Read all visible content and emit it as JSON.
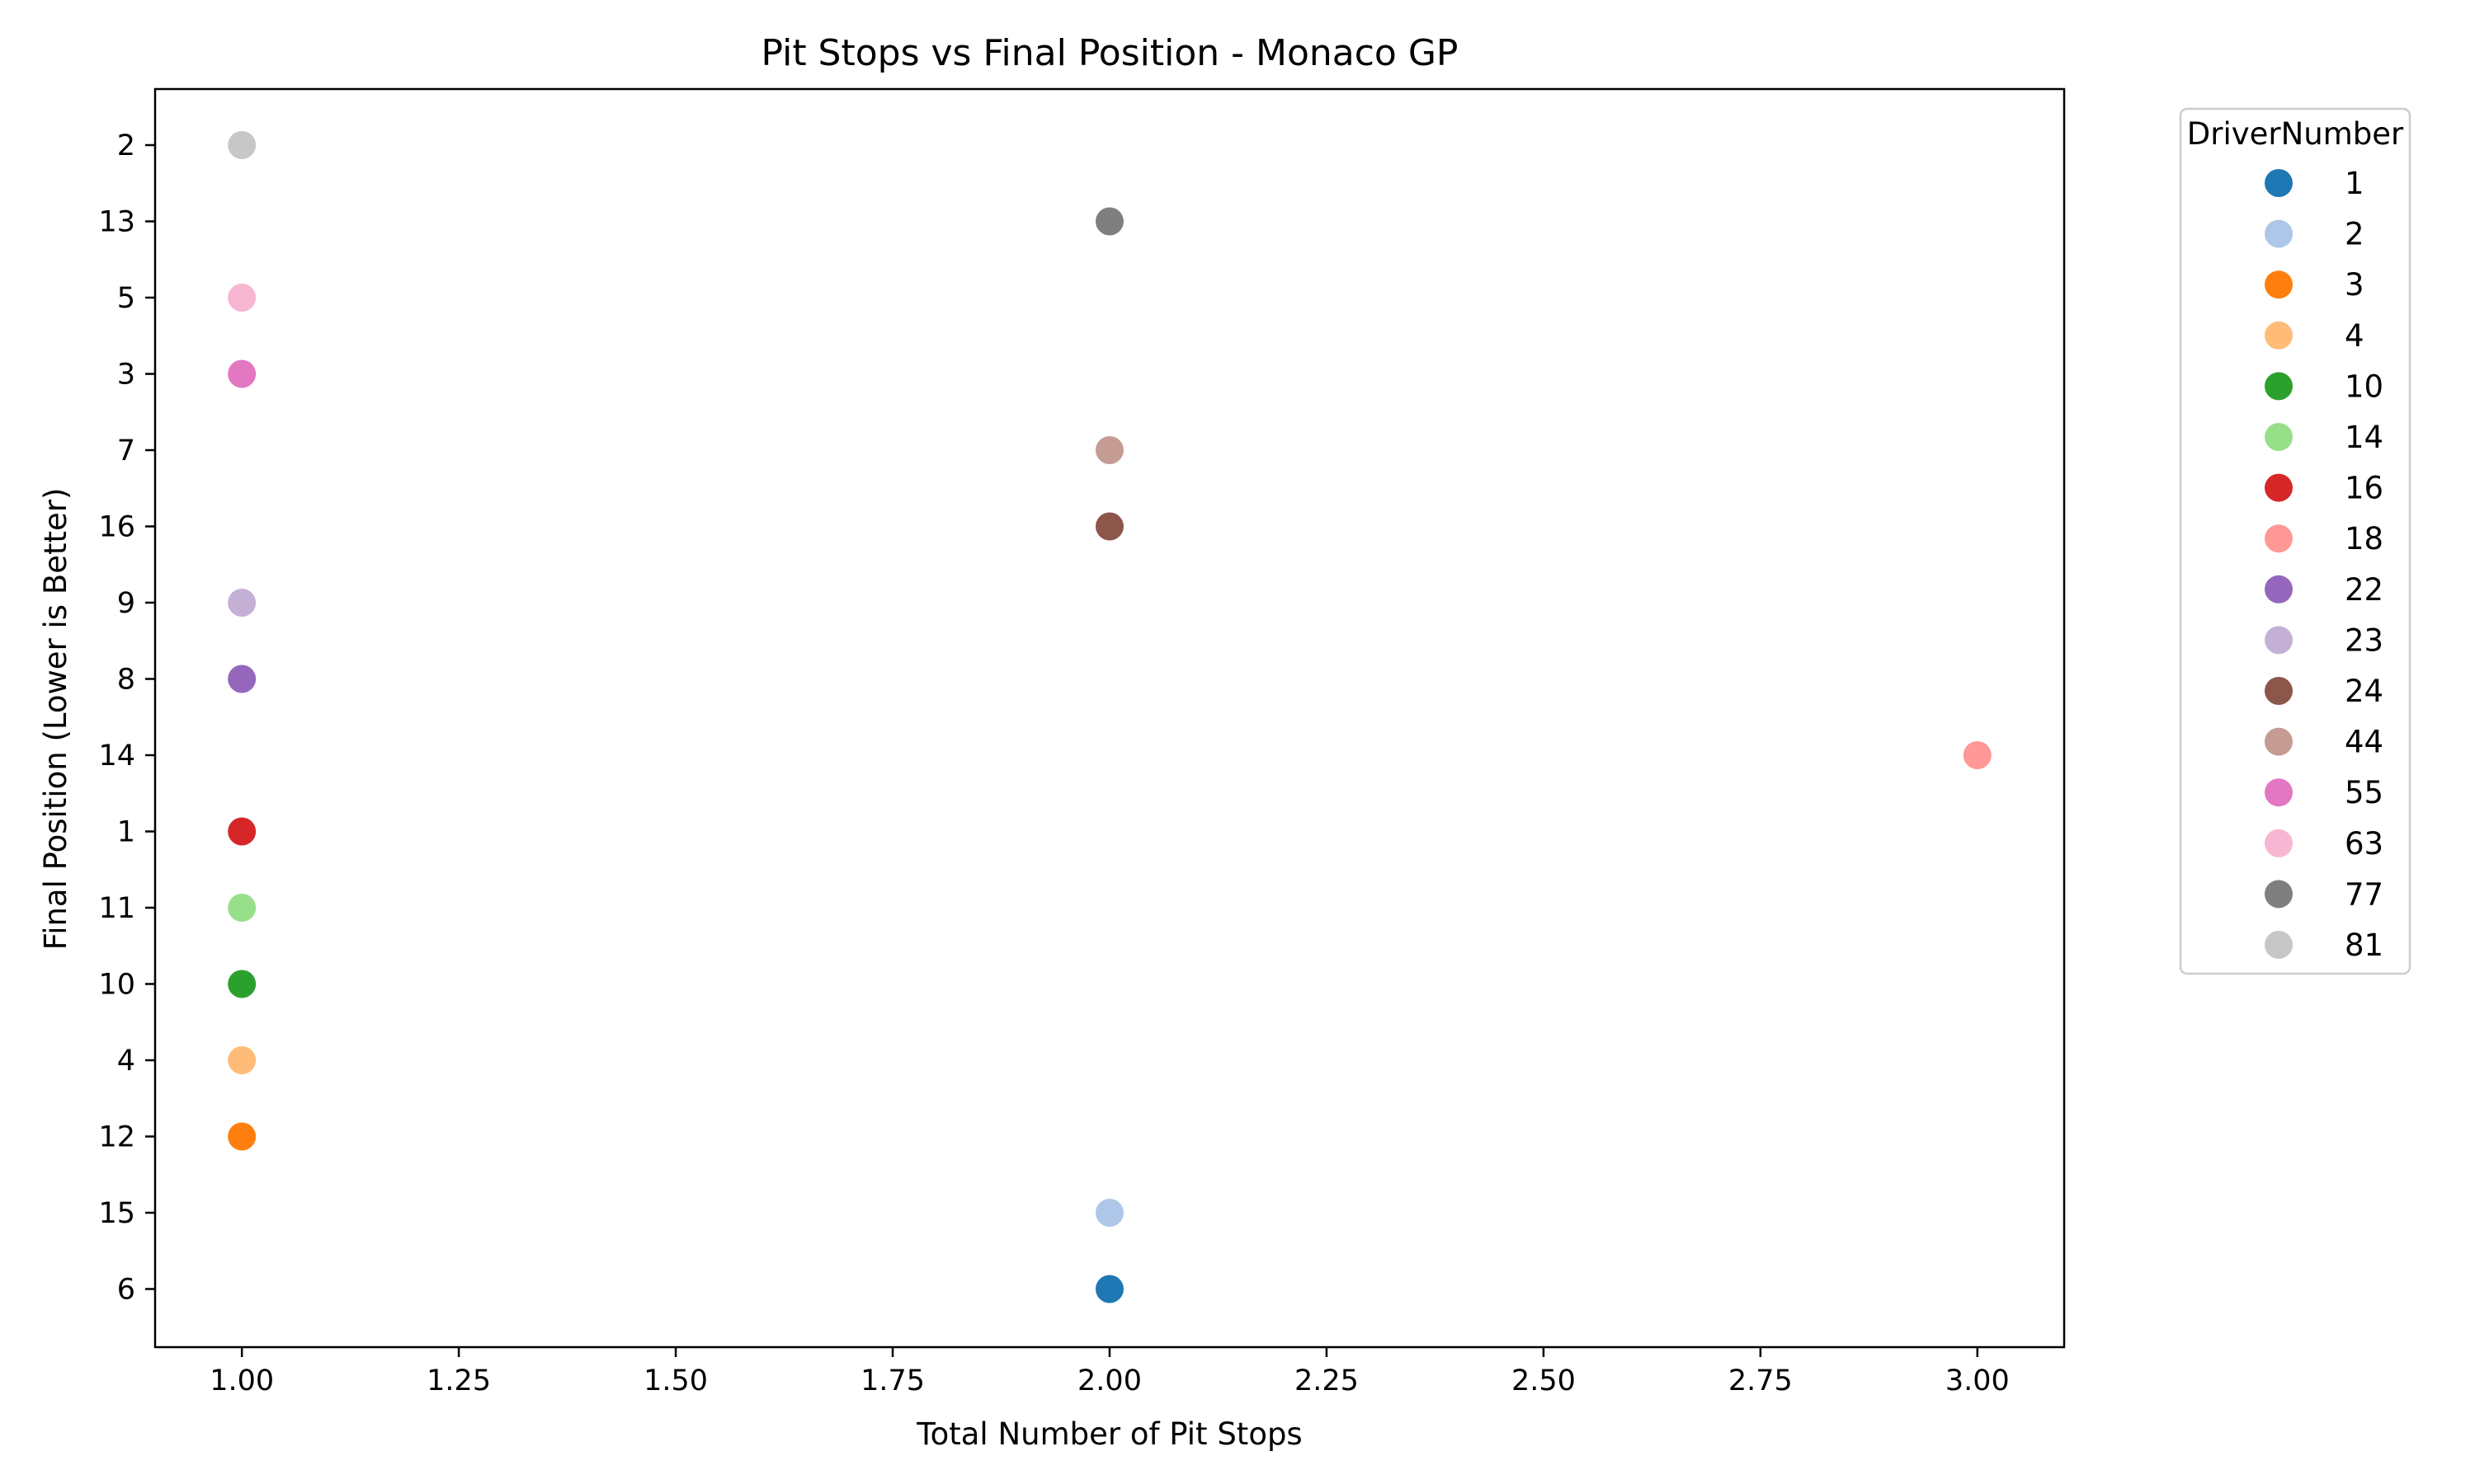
{
  "chart_data": {
    "type": "scatter",
    "title": "Pit Stops vs Final Position - Monaco GP",
    "xlabel": "Total Number of Pit Stops",
    "ylabel": "Final Position (Lower is Better)",
    "xlim": [
      0.9,
      3.1
    ],
    "x_ticks": [
      "1.00",
      "1.25",
      "1.50",
      "1.75",
      "2.00",
      "2.25",
      "2.50",
      "2.75",
      "3.00"
    ],
    "x_tick_values": [
      1.0,
      1.25,
      1.5,
      1.75,
      2.0,
      2.25,
      2.5,
      2.75,
      3.0
    ],
    "y_categories": [
      "2",
      "13",
      "5",
      "3",
      "7",
      "16",
      "9",
      "8",
      "14",
      "1",
      "11",
      "10",
      "4",
      "12",
      "15",
      "6"
    ],
    "grid": false,
    "legend": {
      "title": "DriverNumber",
      "placement": "outside-right"
    },
    "series": [
      {
        "name": "1",
        "color": "#1f77b4",
        "points": [
          {
            "x": 2,
            "y": "6"
          }
        ]
      },
      {
        "name": "2",
        "color": "#aec7e8",
        "points": [
          {
            "x": 2,
            "y": "15"
          }
        ]
      },
      {
        "name": "3",
        "color": "#ff7f0e",
        "points": [
          {
            "x": 1,
            "y": "12"
          }
        ]
      },
      {
        "name": "4",
        "color": "#ffbb78",
        "points": [
          {
            "x": 1,
            "y": "4"
          }
        ]
      },
      {
        "name": "10",
        "color": "#2ca02c",
        "points": [
          {
            "x": 1,
            "y": "10"
          }
        ]
      },
      {
        "name": "14",
        "color": "#98df8a",
        "points": [
          {
            "x": 1,
            "y": "11"
          }
        ]
      },
      {
        "name": "16",
        "color": "#d62728",
        "points": [
          {
            "x": 1,
            "y": "1"
          }
        ]
      },
      {
        "name": "18",
        "color": "#ff9896",
        "points": [
          {
            "x": 3,
            "y": "14"
          }
        ]
      },
      {
        "name": "22",
        "color": "#9467bd",
        "points": [
          {
            "x": 1,
            "y": "8"
          }
        ]
      },
      {
        "name": "23",
        "color": "#c5b0d5",
        "points": [
          {
            "x": 1,
            "y": "9"
          }
        ]
      },
      {
        "name": "24",
        "color": "#8c564b",
        "points": [
          {
            "x": 2,
            "y": "16"
          }
        ]
      },
      {
        "name": "44",
        "color": "#c49c94",
        "points": [
          {
            "x": 2,
            "y": "7"
          }
        ]
      },
      {
        "name": "55",
        "color": "#e377c2",
        "points": [
          {
            "x": 1,
            "y": "3"
          }
        ]
      },
      {
        "name": "63",
        "color": "#f7b6d2",
        "points": [
          {
            "x": 1,
            "y": "5"
          }
        ]
      },
      {
        "name": "77",
        "color": "#7f7f7f",
        "points": [
          {
            "x": 2,
            "y": "13"
          }
        ]
      },
      {
        "name": "81",
        "color": "#c7c7c7",
        "points": [
          {
            "x": 1,
            "y": "2"
          }
        ]
      }
    ]
  }
}
